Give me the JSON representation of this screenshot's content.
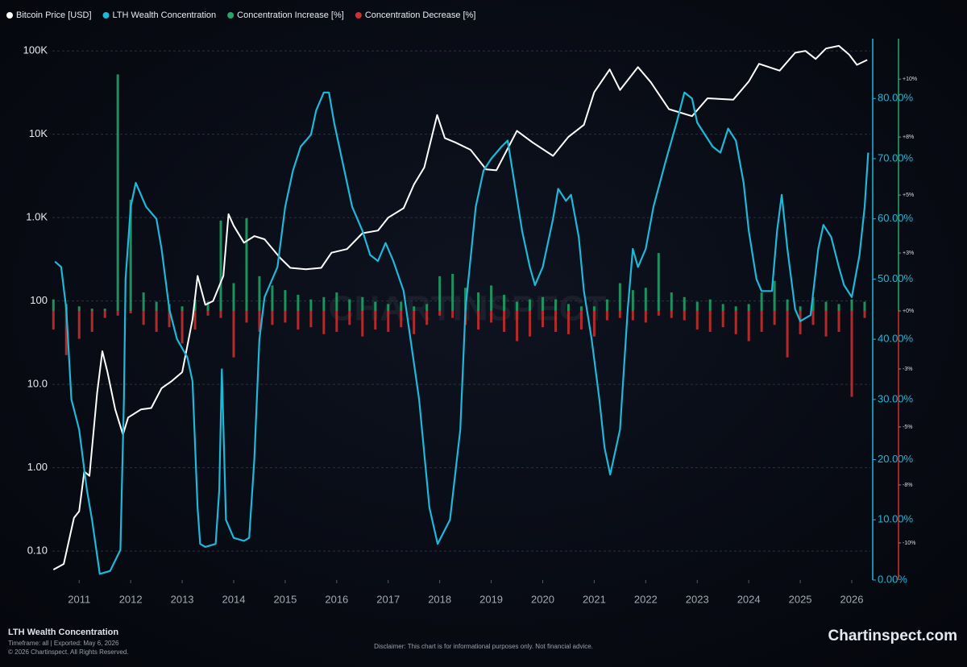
{
  "chart_data": {
    "type": "combo",
    "legend": "top-left",
    "grid": true,
    "ylog": true,
    "xlim": [
      2010.48,
      2026.36
    ],
    "xticks": [
      2011,
      2012,
      2013,
      2014,
      2015,
      2016,
      2017,
      2018,
      2019,
      2020,
      2021,
      2022,
      2023,
      2024,
      2025,
      2026
    ],
    "ylim": [
      0.045,
      120000
    ],
    "yticks": [
      {
        "value": 100000,
        "label": "100K"
      },
      {
        "value": 10000,
        "label": "10K"
      },
      {
        "value": 1000,
        "label": "1.0K"
      },
      100,
      {
        "value": 10,
        "label": "10.0"
      },
      {
        "value": 1,
        "label": "1.00"
      },
      {
        "value": 0.1,
        "label": "0.10"
      }
    ],
    "y2lim": [
      0,
      89
    ],
    "y2ticks": [
      {
        "value": 0,
        "label": "0.00%"
      },
      {
        "value": 10,
        "label": "10.00%"
      },
      {
        "value": 20,
        "label": "20.00%"
      },
      {
        "value": 30,
        "label": "30.00%"
      },
      {
        "value": 40,
        "label": "40.00%"
      },
      {
        "value": 50,
        "label": "50.00%"
      },
      {
        "value": 60,
        "label": "60.00%"
      },
      {
        "value": 70,
        "label": "70.00%"
      },
      {
        "value": 80,
        "label": "80.00%"
      }
    ],
    "y3lim": [
      -11.6,
      11.5
    ],
    "y3ticks": [
      {
        "value": 10,
        "label": "+10%"
      },
      {
        "value": 7.5,
        "label": "+8%"
      },
      {
        "value": 5,
        "label": "+5%"
      },
      {
        "value": 2.5,
        "label": "+3%"
      },
      {
        "value": 0,
        "label": "+0%"
      },
      {
        "value": -2.5,
        "label": "-3%"
      },
      {
        "value": -5,
        "label": "-5%"
      },
      {
        "value": -7.5,
        "label": "-8%"
      },
      {
        "value": -10,
        "label": "-10%"
      }
    ],
    "series": [
      {
        "name": "Bitcoin Price [USD]",
        "color": "#ffffff",
        "kind": "line",
        "axis": "y",
        "x": [
          2010.5,
          2010.7,
          2010.9,
          2011.0,
          2011.1,
          2011.2,
          2011.35,
          2011.45,
          2011.55,
          2011.7,
          2011.85,
          2011.95,
          2012.2,
          2012.4,
          2012.6,
          2012.8,
          2013.0,
          2013.2,
          2013.3,
          2013.45,
          2013.6,
          2013.8,
          2013.9,
          2014.0,
          2014.2,
          2014.4,
          2014.6,
          2014.9,
          2015.1,
          2015.4,
          2015.7,
          2015.9,
          2016.2,
          2016.5,
          2016.8,
          2017.0,
          2017.3,
          2017.5,
          2017.7,
          2017.95,
          2018.1,
          2018.3,
          2018.6,
          2018.9,
          2019.1,
          2019.5,
          2019.8,
          2020.2,
          2020.5,
          2020.8,
          2021.0,
          2021.3,
          2021.5,
          2021.85,
          2022.1,
          2022.45,
          2022.9,
          2023.2,
          2023.7,
          2024.0,
          2024.2,
          2024.6,
          2024.9,
          2025.1,
          2025.3,
          2025.5,
          2025.75,
          2025.95,
          2026.1,
          2026.3
        ],
        "values": [
          0.06,
          0.07,
          0.25,
          0.3,
          0.9,
          0.8,
          8,
          25,
          14,
          5,
          2.5,
          4,
          5,
          5.2,
          9,
          11,
          14,
          60,
          200,
          90,
          100,
          200,
          1100,
          800,
          500,
          600,
          550,
          330,
          250,
          240,
          250,
          380,
          420,
          650,
          700,
          1000,
          1300,
          2500,
          4000,
          17000,
          9000,
          8000,
          6500,
          3800,
          3700,
          11000,
          8000,
          5500,
          9300,
          13000,
          32000,
          60000,
          34000,
          64000,
          42000,
          20000,
          16500,
          27000,
          26000,
          43000,
          70000,
          58000,
          95000,
          100000,
          80000,
          107000,
          115000,
          90000,
          68000,
          78000
        ]
      },
      {
        "name": "LTH Wealth Concentration",
        "color": "#1eb8d8",
        "kind": "line",
        "axis": "y2",
        "x": [
          2010.53,
          2010.65,
          2010.75,
          2010.85,
          2011.0,
          2011.15,
          2011.25,
          2011.4,
          2011.6,
          2011.8,
          2011.87,
          2011.9,
          2012.0,
          2012.1,
          2012.3,
          2012.5,
          2012.6,
          2012.75,
          2012.9,
          2013.1,
          2013.2,
          2013.3,
          2013.35,
          2013.45,
          2013.65,
          2013.72,
          2013.77,
          2013.85,
          2014.0,
          2014.2,
          2014.3,
          2014.4,
          2014.5,
          2014.6,
          2014.85,
          2015.0,
          2015.15,
          2015.3,
          2015.5,
          2015.6,
          2015.75,
          2015.85,
          2015.95,
          2016.1,
          2016.3,
          2016.5,
          2016.65,
          2016.8,
          2016.95,
          2017.1,
          2017.3,
          2017.6,
          2017.8,
          2017.96,
          2018.2,
          2018.4,
          2018.5,
          2018.7,
          2018.85,
          2019.0,
          2019.2,
          2019.32,
          2019.6,
          2019.75,
          2019.85,
          2020.0,
          2020.2,
          2020.3,
          2020.45,
          2020.55,
          2020.7,
          2020.8,
          2020.95,
          2021.1,
          2021.2,
          2021.31,
          2021.5,
          2021.65,
          2021.75,
          2021.85,
          2022.0,
          2022.15,
          2022.4,
          2022.6,
          2022.75,
          2022.9,
          2023.0,
          2023.15,
          2023.3,
          2023.45,
          2023.6,
          2023.75,
          2023.9,
          2024.0,
          2024.15,
          2024.25,
          2024.45,
          2024.55,
          2024.64,
          2024.75,
          2024.9,
          2025.0,
          2025.2,
          2025.35,
          2025.45,
          2025.6,
          2025.75,
          2025.85,
          2026.0,
          2026.15,
          2026.25,
          2026.32
        ],
        "values": [
          52.9,
          52,
          45,
          30,
          25,
          15,
          10,
          1,
          1.5,
          5,
          30,
          50,
          62,
          66,
          62,
          60,
          55,
          45,
          40,
          37,
          33,
          12,
          6,
          5.5,
          6,
          15,
          35,
          10,
          7,
          6.5,
          7,
          20,
          40,
          47,
          52,
          62,
          68,
          72,
          74,
          78,
          81,
          81,
          76,
          70,
          62,
          58,
          54,
          53,
          56,
          53,
          48,
          30,
          12,
          6,
          10,
          25,
          45,
          62,
          68,
          70,
          72,
          73,
          58,
          52,
          49,
          52,
          60,
          65,
          63,
          64,
          57,
          48,
          40,
          30,
          22,
          17.5,
          25,
          45,
          55,
          52,
          55,
          62,
          70,
          76,
          81,
          80,
          76,
          74,
          72,
          71,
          75,
          73,
          66,
          58,
          50,
          48,
          48,
          58,
          64,
          55,
          45,
          43,
          44,
          55,
          59,
          57,
          52,
          49,
          47,
          54,
          62,
          71
        ]
      },
      {
        "name": "Concentration Increase [%]",
        "color": "#22a86a",
        "kind": "bar",
        "axis": "y3",
        "x": [
          2010.5,
          2010.75,
          2011,
          2011.25,
          2011.5,
          2011.75,
          2012,
          2012.25,
          2012.5,
          2012.75,
          2013,
          2013.25,
          2013.5,
          2013.75,
          2014,
          2014.25,
          2014.5,
          2014.75,
          2015,
          2015.25,
          2015.5,
          2015.75,
          2016,
          2016.25,
          2016.5,
          2016.75,
          2017,
          2017.25,
          2017.5,
          2017.75,
          2018,
          2018.25,
          2018.5,
          2018.75,
          2019,
          2019.25,
          2019.5,
          2019.75,
          2020,
          2020.25,
          2020.5,
          2020.75,
          2021,
          2021.25,
          2021.5,
          2021.75,
          2022,
          2022.25,
          2022.5,
          2022.75,
          2023,
          2023.25,
          2023.5,
          2023.75,
          2024,
          2024.25,
          2024.5,
          2024.75,
          2025,
          2025.25,
          2025.5,
          2025.75,
          2026,
          2026.25
        ],
        "values": [
          0.5,
          0.3,
          0.2,
          0.1,
          0.1,
          10.2,
          4.8,
          0.8,
          0.4,
          0.3,
          0.2,
          0.5,
          0.4,
          3.9,
          1.2,
          4.0,
          1.5,
          1.1,
          0.9,
          0.7,
          0.5,
          0.6,
          0.8,
          0.5,
          0.6,
          0.4,
          0.3,
          0.4,
          0.2,
          0.3,
          1.5,
          1.6,
          1.0,
          0.8,
          1.1,
          0.7,
          0.4,
          0.5,
          0.6,
          0.5,
          0.3,
          0.2,
          0.2,
          0.5,
          1.2,
          0.9,
          1.0,
          2.5,
          0.8,
          0.6,
          0.4,
          0.5,
          0.3,
          0.2,
          0.3,
          0.8,
          1.3,
          0.5,
          0.2,
          0.6,
          0.4,
          0.3,
          0.5,
          0.4
        ]
      },
      {
        "name": "Concentration Decrease [%]",
        "color": "#d0302f",
        "kind": "bar",
        "axis": "y3",
        "x": [
          2010.5,
          2010.75,
          2011,
          2011.25,
          2011.5,
          2011.75,
          2012,
          2012.25,
          2012.5,
          2012.75,
          2013,
          2013.25,
          2013.5,
          2013.75,
          2014,
          2014.25,
          2014.5,
          2014.75,
          2015,
          2015.25,
          2015.5,
          2015.75,
          2016,
          2016.25,
          2016.5,
          2016.75,
          2017,
          2017.25,
          2017.5,
          2017.75,
          2018,
          2018.25,
          2018.5,
          2018.75,
          2019,
          2019.25,
          2019.5,
          2019.75,
          2020,
          2020.25,
          2020.5,
          2020.75,
          2021,
          2021.25,
          2021.5,
          2021.75,
          2022,
          2022.25,
          2022.5,
          2022.75,
          2023,
          2023.25,
          2023.5,
          2023.75,
          2024,
          2024.25,
          2024.5,
          2024.75,
          2025,
          2025.25,
          2025.5,
          2025.75,
          2026,
          2026.25
        ],
        "values": [
          -0.8,
          -1.9,
          -1.2,
          -0.9,
          -0.3,
          -0.2,
          -0.1,
          -0.6,
          -0.9,
          -0.7,
          -1.4,
          -0.8,
          -0.2,
          -0.3,
          -2.0,
          -0.5,
          -0.9,
          -0.6,
          -0.5,
          -0.8,
          -0.7,
          -1.0,
          -0.9,
          -0.6,
          -1.1,
          -0.8,
          -0.9,
          -0.7,
          -1.0,
          -0.6,
          -0.2,
          -0.3,
          -0.6,
          -0.8,
          -0.5,
          -0.9,
          -1.3,
          -1.1,
          -0.7,
          -0.9,
          -1.0,
          -0.8,
          -1.1,
          -0.4,
          -0.3,
          -0.4,
          -0.5,
          -0.2,
          -0.3,
          -0.4,
          -0.8,
          -0.9,
          -0.7,
          -1.0,
          -1.3,
          -0.9,
          -0.6,
          -2.0,
          -1.0,
          -0.6,
          -1.1,
          -0.9,
          -3.7,
          -0.3
        ]
      }
    ]
  },
  "watermark": "CHARTINSPECT",
  "footer": {
    "title": "LTH Wealth Concentration",
    "meta": "Timeframe: all | Exported: May 6, 2026",
    "copyright": "© 2026 Chartinspect. All Rights Reserved.",
    "disclaimer": "Disclaimer: This chart is for informational purposes only. Not financial advice.",
    "logo": "Chartinspect.com"
  }
}
